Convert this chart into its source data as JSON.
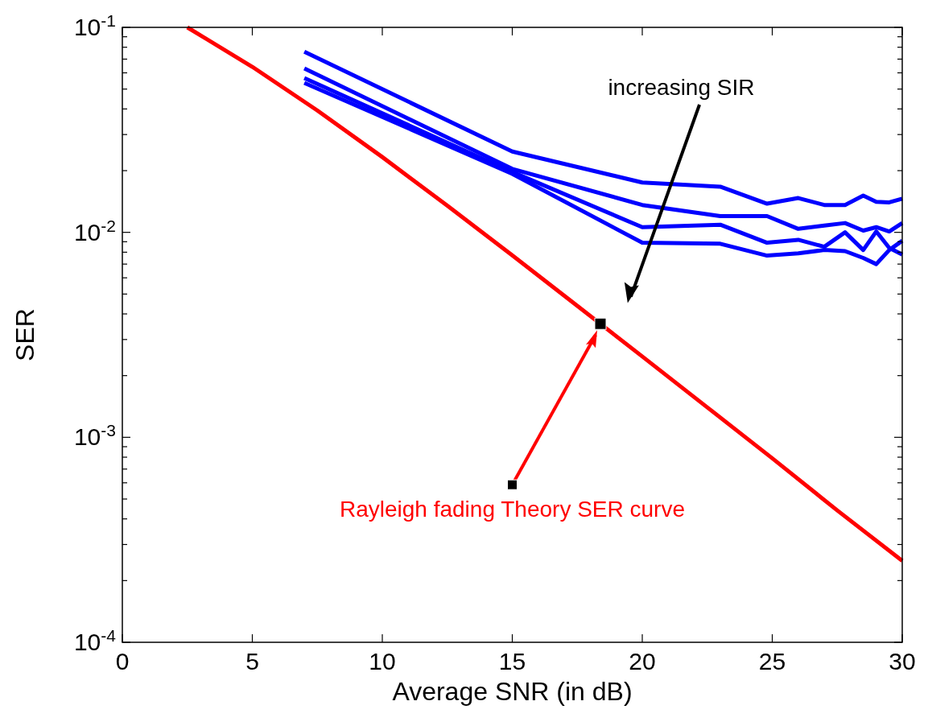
{
  "chart_data": {
    "type": "line",
    "xlabel": "Average SNR (in dB)",
    "ylabel": "SER",
    "log": "y",
    "grid": false,
    "line_style": "solid",
    "marker": "none",
    "xlim": [
      0,
      30
    ],
    "xticks": [
      0,
      5,
      10,
      15,
      20,
      25,
      30
    ],
    "ylim": [
      0.0001,
      0.1
    ],
    "yticks": [
      {
        "value": 0.0001,
        "label": "10$^{-4}$"
      },
      {
        "value": 0.0002,
        "label": null
      },
      {
        "value": 0.0003,
        "label": null
      },
      {
        "value": 0.0004,
        "label": null
      },
      {
        "value": 0.0005,
        "label": null
      },
      {
        "value": 0.0006,
        "label": null
      },
      {
        "value": 0.0007,
        "label": null
      },
      {
        "value": 0.0008,
        "label": null
      },
      {
        "value": 0.0009,
        "label": null
      },
      {
        "value": 0.001,
        "label": "10$^{-3}$"
      },
      {
        "value": 0.002,
        "label": null
      },
      {
        "value": 0.003,
        "label": null
      },
      {
        "value": 0.004,
        "label": null
      },
      {
        "value": 0.005,
        "label": null
      },
      {
        "value": 0.006,
        "label": null
      },
      {
        "value": 0.007,
        "label": null
      },
      {
        "value": 0.008,
        "label": null
      },
      {
        "value": 0.009,
        "label": null
      },
      {
        "value": 0.01,
        "label": "10$^{-2}$"
      },
      {
        "value": 0.02,
        "label": null
      },
      {
        "value": 0.03,
        "label": null
      },
      {
        "value": 0.04,
        "label": null
      },
      {
        "value": 0.05,
        "label": null
      },
      {
        "value": 0.06,
        "label": null
      },
      {
        "value": 0.07,
        "label": null
      },
      {
        "value": 0.08,
        "label": null
      },
      {
        "value": 0.09,
        "label": null
      },
      {
        "value": 0.1,
        "label": "10$^{-1}$"
      }
    ],
    "series": [
      {
        "color": "#ff0000",
        "x": [
          2.5,
          5,
          7.5,
          10,
          12.5,
          15,
          17.5,
          20,
          22.5,
          25,
          27.5,
          30
        ],
        "values": [
          0.1,
          0.0642,
          0.0393,
          0.0233,
          0.0135,
          0.00773,
          0.00438,
          0.00248,
          0.0014,
          0.00079,
          0.00044,
          0.00025
        ]
      },
      {
        "color": "#0000ff",
        "x": [
          7,
          15,
          20,
          23,
          24.8,
          26,
          27,
          27.8,
          28.5,
          29,
          29.5,
          30
        ],
        "values": [
          0.076,
          0.0248,
          0.0175,
          0.0167,
          0.0138,
          0.0147,
          0.0136,
          0.0136,
          0.0151,
          0.0141,
          0.014,
          0.0146
        ]
      },
      {
        "color": "#0000ff",
        "x": [
          7,
          15,
          20,
          23,
          24.8,
          26,
          27,
          27.8,
          28.5,
          29,
          29.5,
          30
        ],
        "values": [
          0.063,
          0.0204,
          0.0136,
          0.012,
          0.012,
          0.0104,
          0.0108,
          0.0111,
          0.0102,
          0.0106,
          0.0101,
          0.0111
        ]
      },
      {
        "color": "#0000ff",
        "x": [
          7,
          15,
          20,
          23,
          24.8,
          26,
          27,
          27.8,
          28.5,
          29,
          29.5,
          30
        ],
        "values": [
          0.0566,
          0.0197,
          0.0106,
          0.0109,
          0.0089,
          0.0092,
          0.0085,
          0.01,
          0.0082,
          0.0101,
          0.0084,
          0.0078
        ]
      },
      {
        "color": "#0000ff",
        "x": [
          7,
          15,
          20,
          23,
          24.8,
          26,
          27,
          27.8,
          28.5,
          29,
          29.5,
          30
        ],
        "values": [
          0.0536,
          0.0193,
          0.0089,
          0.0088,
          0.0077,
          0.0079,
          0.0082,
          0.0081,
          0.0075,
          0.007,
          0.0082,
          0.0091
        ]
      }
    ],
    "annotations": [
      "increasing SIR",
      "Rayleigh fading Theory SER curve"
    ]
  }
}
